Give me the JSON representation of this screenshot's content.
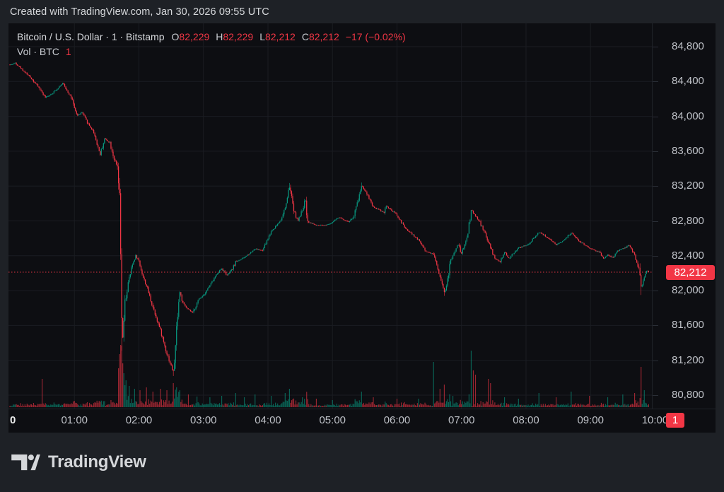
{
  "header": {
    "attribution": "Created with TradingView.com, Jan 30, 2026 09:55 UTC"
  },
  "legend": {
    "symbol_title": "Bitcoin / U.S. Dollar · 1 · Bitstamp",
    "ohlc": [
      {
        "label": "O",
        "value": "82,229"
      },
      {
        "label": "H",
        "value": "82,229"
      },
      {
        "label": "L",
        "value": "82,212"
      },
      {
        "label": "C",
        "value": "82,212"
      }
    ],
    "change": "−17 (−0.02%)",
    "volume_label": "Vol · BTC",
    "volume_value": "1"
  },
  "price_axis": {
    "ticks": [
      {
        "label": "84,800",
        "value": 84800
      },
      {
        "label": "84,400",
        "value": 84400
      },
      {
        "label": "84,000",
        "value": 84000
      },
      {
        "label": "83,600",
        "value": 83600
      },
      {
        "label": "83,200",
        "value": 83200
      },
      {
        "label": "82,800",
        "value": 82800
      },
      {
        "label": "82,400",
        "value": 82400
      },
      {
        "label": "82,000",
        "value": 82000
      },
      {
        "label": "81,600",
        "value": 81600
      },
      {
        "label": "81,200",
        "value": 81200
      },
      {
        "label": "80,800",
        "value": 80800
      }
    ],
    "last_price_label": "82,212",
    "last_price_value": 82212,
    "volume_badge": "1"
  },
  "time_axis": {
    "ticks": [
      {
        "label": "0",
        "minute": 0,
        "bold": true
      },
      {
        "label": "01:00",
        "minute": 60
      },
      {
        "label": "02:00",
        "minute": 120
      },
      {
        "label": "03:00",
        "minute": 180
      },
      {
        "label": "04:00",
        "minute": 240
      },
      {
        "label": "05:00",
        "minute": 300
      },
      {
        "label": "06:00",
        "minute": 360
      },
      {
        "label": "07:00",
        "minute": 420
      },
      {
        "label": "08:00",
        "minute": 480
      },
      {
        "label": "09:00",
        "minute": 540
      },
      {
        "label": "10:00",
        "minute": 600
      }
    ]
  },
  "footer": {
    "brand": "TradingView"
  },
  "colors": {
    "up": "#089981",
    "down": "#f23645",
    "accent_red": "#f23645",
    "axis_text": "#bfc2c8",
    "title_text": "#d7d9dd",
    "bg_page": "#1e2126",
    "bg_chart": "#0d0e12",
    "grid": "#1a1c22"
  },
  "chart_data": {
    "type": "candlestick+volume",
    "symbol": "Bitcoin / U.S. Dollar",
    "exchange": "Bitstamp",
    "interval_minutes": 1,
    "date": "Jan 30, 2026",
    "time_range": [
      "00:00",
      "09:55"
    ],
    "n_candles": 595,
    "open": 82229,
    "high": 82229,
    "low": 82212,
    "close": 82212,
    "change": -17,
    "change_pct": -0.02,
    "session_high": 84650,
    "session_low": 81020,
    "visible_price_range": [
      80650,
      85070
    ],
    "price_axis_step": 400,
    "price_anchors": [
      [
        0,
        84590
      ],
      [
        5,
        84615
      ],
      [
        13,
        84520
      ],
      [
        20,
        84435
      ],
      [
        27,
        84330
      ],
      [
        33,
        84215
      ],
      [
        40,
        84270
      ],
      [
        49,
        84380
      ],
      [
        53,
        84300
      ],
      [
        57,
        84220
      ],
      [
        60,
        84080
      ],
      [
        63,
        84010
      ],
      [
        67,
        84045
      ],
      [
        72,
        83930
      ],
      [
        78,
        83820
      ],
      [
        84,
        83560
      ],
      [
        88,
        83745
      ],
      [
        93,
        83700
      ],
      [
        97,
        83510
      ],
      [
        100,
        83400
      ],
      [
        102,
        83050
      ],
      [
        103,
        82400
      ],
      [
        104,
        81700
      ],
      [
        105,
        81450
      ],
      [
        107,
        81850
      ],
      [
        110,
        82080
      ],
      [
        114,
        82300
      ],
      [
        117,
        82405
      ],
      [
        120,
        82340
      ],
      [
        124,
        82150
      ],
      [
        128,
        82020
      ],
      [
        131,
        81890
      ],
      [
        136,
        81700
      ],
      [
        141,
        81500
      ],
      [
        146,
        81280
      ],
      [
        152,
        81060
      ],
      [
        154,
        81350
      ],
      [
        156,
        81760
      ],
      [
        158,
        81985
      ],
      [
        161,
        81850
      ],
      [
        165,
        81790
      ],
      [
        170,
        81745
      ],
      [
        176,
        81905
      ],
      [
        181,
        81965
      ],
      [
        186,
        82060
      ],
      [
        193,
        82200
      ],
      [
        197,
        82255
      ],
      [
        202,
        82175
      ],
      [
        207,
        82250
      ],
      [
        210,
        82330
      ],
      [
        218,
        82380
      ],
      [
        228,
        82480
      ],
      [
        235,
        82460
      ],
      [
        243,
        82680
      ],
      [
        248,
        82750
      ],
      [
        253,
        82830
      ],
      [
        256,
        82950
      ],
      [
        260,
        83185
      ],
      [
        263,
        83000
      ],
      [
        265,
        82880
      ],
      [
        268,
        82800
      ],
      [
        272,
        82930
      ],
      [
        275,
        83050
      ],
      [
        277,
        82790
      ],
      [
        285,
        82750
      ],
      [
        293,
        82750
      ],
      [
        299,
        82780
      ],
      [
        306,
        82840
      ],
      [
        315,
        82790
      ],
      [
        320,
        82850
      ],
      [
        327,
        83205
      ],
      [
        331,
        83140
      ],
      [
        338,
        82960
      ],
      [
        348,
        82900
      ],
      [
        350,
        82970
      ],
      [
        359,
        82880
      ],
      [
        368,
        82710
      ],
      [
        374,
        82650
      ],
      [
        381,
        82570
      ],
      [
        387,
        82450
      ],
      [
        394,
        82420
      ],
      [
        400,
        82170
      ],
      [
        404,
        81990
      ],
      [
        406,
        82040
      ],
      [
        410,
        82350
      ],
      [
        417,
        82530
      ],
      [
        420,
        82425
      ],
      [
        425,
        82600
      ],
      [
        429,
        82925
      ],
      [
        436,
        82810
      ],
      [
        442,
        82650
      ],
      [
        451,
        82365
      ],
      [
        456,
        82330
      ],
      [
        460,
        82440
      ],
      [
        464,
        82370
      ],
      [
        473,
        82490
      ],
      [
        482,
        82530
      ],
      [
        492,
        82670
      ],
      [
        499,
        82620
      ],
      [
        508,
        82520
      ],
      [
        517,
        82600
      ],
      [
        522,
        82665
      ],
      [
        529,
        82570
      ],
      [
        539,
        82490
      ],
      [
        548,
        82440
      ],
      [
        552,
        82370
      ],
      [
        556,
        82410
      ],
      [
        561,
        82375
      ],
      [
        565,
        82455
      ],
      [
        570,
        82480
      ],
      [
        576,
        82520
      ],
      [
        581,
        82410
      ],
      [
        585,
        82250
      ],
      [
        587,
        82030
      ],
      [
        590,
        82160
      ],
      [
        592,
        82230
      ],
      [
        594,
        82212
      ]
    ],
    "special_wicks": [
      [
        84,
        "low",
        83545
      ],
      [
        104,
        "low",
        81310
      ],
      [
        152,
        "low",
        81020
      ],
      [
        260,
        "high",
        83235
      ],
      [
        327,
        "high",
        83240
      ],
      [
        404,
        "low",
        81940
      ],
      [
        587,
        "low",
        81950
      ]
    ],
    "volume_spikes": [
      [
        30,
        40,
        "down"
      ],
      [
        101,
        55
      ],
      [
        102,
        75
      ],
      [
        103,
        88
      ],
      [
        104,
        82
      ],
      [
        105,
        62
      ],
      [
        106,
        48
      ],
      [
        108,
        38
      ],
      [
        111,
        30
      ],
      [
        116,
        26
      ],
      [
        121,
        24
      ],
      [
        127,
        28
      ],
      [
        133,
        22
      ],
      [
        140,
        26
      ],
      [
        146,
        24
      ],
      [
        152,
        34
      ],
      [
        155,
        28
      ],
      [
        158,
        24
      ],
      [
        166,
        18
      ],
      [
        174,
        15
      ],
      [
        186,
        14
      ],
      [
        197,
        16
      ],
      [
        210,
        20
      ],
      [
        218,
        14
      ],
      [
        228,
        18
      ],
      [
        243,
        16
      ],
      [
        256,
        20
      ],
      [
        260,
        26
      ],
      [
        272,
        14
      ],
      [
        285,
        12
      ],
      [
        300,
        10
      ],
      [
        327,
        22
      ],
      [
        338,
        14
      ],
      [
        360,
        12
      ],
      [
        380,
        12
      ],
      [
        394,
        64,
        "up"
      ],
      [
        400,
        26
      ],
      [
        404,
        32
      ],
      [
        412,
        16
      ],
      [
        429,
        80,
        "up"
      ],
      [
        431,
        52
      ],
      [
        433,
        46
      ],
      [
        445,
        40
      ],
      [
        447,
        34
      ],
      [
        460,
        14
      ],
      [
        473,
        12
      ],
      [
        492,
        20
      ],
      [
        508,
        14
      ],
      [
        522,
        22
      ],
      [
        539,
        16
      ],
      [
        556,
        14
      ],
      [
        570,
        18
      ],
      [
        581,
        20
      ],
      [
        587,
        57,
        "down"
      ],
      [
        590,
        24
      ]
    ]
  }
}
